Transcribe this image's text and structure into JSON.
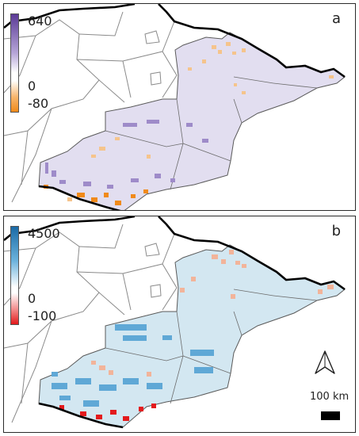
{
  "panels": [
    {
      "letter": "a",
      "legend": {
        "max_label": "640",
        "zero_label": "0",
        "min_label": "-80",
        "colors": {
          "high": "#5b3a96",
          "mid": "#ffffff",
          "low": "#f08a1a"
        }
      },
      "palette": {
        "region_fill": "#e2def0",
        "high_cell": "#9e8bc9",
        "low_cell": "#f5c48c",
        "strong_low_cell": "#f08a1a"
      }
    },
    {
      "letter": "b",
      "legend": {
        "max_label": "4500",
        "zero_label": "0",
        "min_label": "-100",
        "colors": {
          "high": "#1a6aa6",
          "mid": "#ffffff",
          "low": "#e31a1c"
        }
      },
      "palette": {
        "region_fill": "#d3e7f1",
        "high_cell": "#5fa8d6",
        "low_cell": "#f2b49a",
        "strong_low_cell": "#e31a1c"
      }
    }
  ],
  "north_arrow": {
    "icon": "north-arrow-icon"
  },
  "scale_bar": {
    "label": "100 km"
  }
}
